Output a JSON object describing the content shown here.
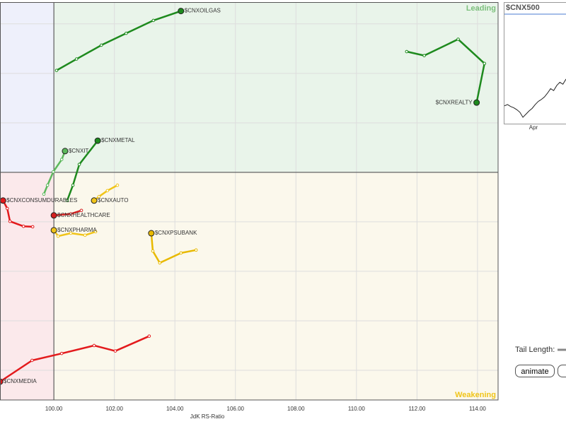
{
  "chart_data": {
    "type": "rrg",
    "x_label": "JdK RS-Ratio",
    "xlim": [
      98.22,
      114.68
    ],
    "ylim": [
      95.4,
      103.44
    ],
    "center": [
      100,
      100
    ],
    "xticks": [
      {
        "value": 100,
        "label": "100.00"
      },
      {
        "value": 102,
        "label": "102.00"
      },
      {
        "value": 104,
        "label": "104.00"
      },
      {
        "value": 106,
        "label": "106.00"
      },
      {
        "value": 108,
        "label": "108.00"
      },
      {
        "value": 110,
        "label": "110.00"
      },
      {
        "value": 112,
        "label": "112.00"
      },
      {
        "value": 114,
        "label": "114.00"
      }
    ],
    "yticks": [
      96,
      97,
      98,
      99,
      100,
      101,
      102,
      103
    ],
    "grid": true,
    "quadrant_labels": {
      "leading": "Leading",
      "weakening": "Weakening"
    },
    "series": [
      {
        "name": "$CNXOILGAS",
        "color": "#1e8a1e",
        "x": [
          100.09,
          100.75,
          101.57,
          102.39,
          103.29,
          104.2
        ],
        "y": [
          102.06,
          102.29,
          102.57,
          102.81,
          103.07,
          103.26
        ]
      },
      {
        "name": "$CNXREALTY",
        "color": "#1e8a1e",
        "x": [
          111.66,
          112.24,
          113.36,
          114.23,
          113.97
        ],
        "y": [
          102.44,
          102.36,
          102.69,
          102.2,
          101.41
        ]
      },
      {
        "name": "$CNXMETAL",
        "color": "#1e8a1e",
        "x": [
          100.44,
          100.63,
          100.84,
          101.45
        ],
        "y": [
          99.43,
          99.74,
          100.16,
          100.64
        ]
      },
      {
        "name": "$CNXIT",
        "color": "#5cb85c",
        "x": [
          99.67,
          99.79,
          99.98,
          100.26,
          100.37
        ],
        "y": [
          99.56,
          99.74,
          100.01,
          100.26,
          100.43
        ]
      },
      {
        "name": "$CNXAUTO",
        "color": "#f0c419",
        "x": [
          102.1,
          101.77,
          101.49,
          101.33
        ],
        "y": [
          99.74,
          99.63,
          99.51,
          99.43
        ]
      },
      {
        "name": "$CNXHEALTHCARE",
        "color": "#d42020",
        "x": [
          100.91,
          100.56,
          100
        ],
        "y": [
          99.23,
          99.16,
          99.13
        ]
      },
      {
        "name": "$CNXCONSUMDURABLES",
        "color": "#e31a1c",
        "x": [
          99.3,
          98.995,
          98.55,
          98.46,
          98.32
        ],
        "y": [
          98.9,
          98.91,
          99.01,
          99.27,
          99.43
        ]
      },
      {
        "name": "$CNXPHARMA",
        "color": "#f0c419",
        "x": [
          101.38,
          101.03,
          100.56,
          100.14,
          100
        ],
        "y": [
          98.8,
          98.73,
          98.77,
          98.71,
          98.83
        ]
      },
      {
        "name": "$CNXPSUBANK",
        "color": "#e8b900",
        "x": [
          104.7,
          104.2,
          103.5,
          103.27,
          103.22
        ],
        "y": [
          98.43,
          98.37,
          98.17,
          98.41,
          98.77
        ]
      },
      {
        "name": "$CNXMEDIA",
        "color": "#e31a1c",
        "x": [
          103.15,
          102.03,
          101.33,
          100.26,
          99.28,
          98.22
        ],
        "y": [
          96.69,
          96.39,
          96.5,
          96.34,
          96.2,
          95.77
        ]
      }
    ]
  },
  "mini_chart": {
    "title": "$CNX500",
    "x_label": "Apr",
    "ylim": [
      0,
      172
    ],
    "values": [
      28,
      30,
      27,
      25,
      22,
      18,
      10,
      15,
      20,
      24,
      30,
      35,
      38,
      42,
      48,
      55,
      52,
      60,
      65,
      62,
      70
    ]
  },
  "controls": {
    "tail_length_label": "Tail Length:",
    "animate": "animate"
  }
}
